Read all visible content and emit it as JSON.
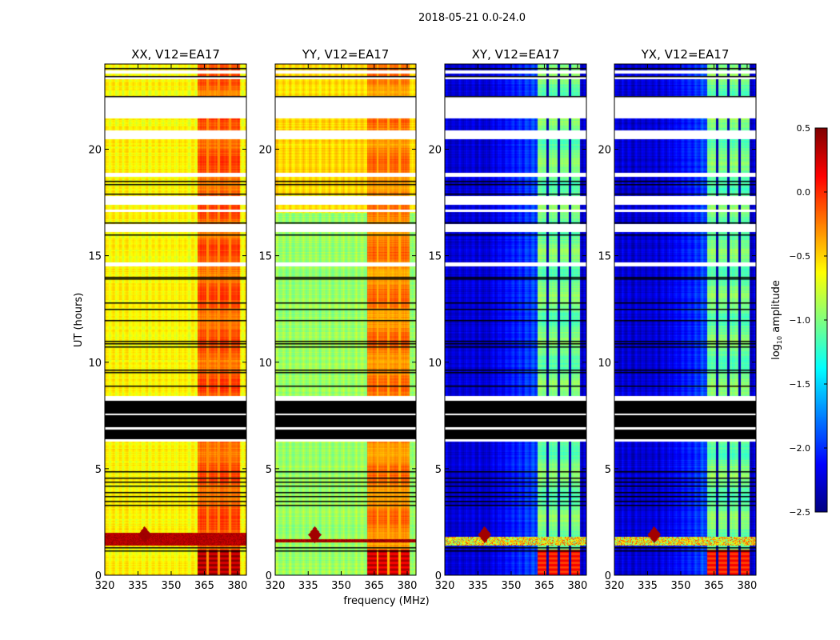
{
  "chart_data": {
    "type": "heatmap",
    "suptitle": "2018-05-21 0.0-24.0",
    "xlabel": "frequency (MHz)",
    "ylabel": "UT (hours)",
    "xlim": [
      320,
      384
    ],
    "ylim": [
      0,
      24
    ],
    "xticks": [
      320,
      335,
      350,
      365,
      380
    ],
    "yticks": [
      0,
      5,
      10,
      15,
      20
    ],
    "colormap": "jet",
    "colorbar": {
      "label_main": "log",
      "label_sub": "10",
      "label_rest": " amplitude",
      "range": [
        -2.5,
        0.5
      ],
      "ticks": [
        0.5,
        0.0,
        -0.5,
        -1.0,
        -1.5,
        -2.0,
        -2.5
      ],
      "tick_labels": [
        "0.5",
        "0.0",
        "−0.5",
        "−1.0",
        "−1.5",
        "−2.0",
        "−2.5"
      ]
    },
    "panels": [
      {
        "title": "XX, V12=EA17",
        "base": -0.62,
        "band": -0.15,
        "low_band": 0.35,
        "rfi_level": 0.35,
        "rfi_hours": [
          1.4,
          2.0
        ],
        "upper_shift": 0.0
      },
      {
        "title": "YY, V12=EA17",
        "base": -0.92,
        "band": -0.25,
        "low_band": 0.25,
        "rfi_level": 0.4,
        "rfi_hours": [
          1.55,
          1.7
        ],
        "upper_shift": 0.4
      },
      {
        "title": "XY, V12=EA17",
        "base": -2.25,
        "band": -1.05,
        "low_band": 0.05,
        "rfi_level": -0.6,
        "rfi_hours": [
          1.4,
          1.8
        ],
        "upper_shift": 0.0
      },
      {
        "title": "YX, V12=EA17",
        "base": -2.25,
        "band": -1.05,
        "low_band": 0.05,
        "rfi_level": -0.6,
        "rfi_hours": [
          1.4,
          1.8
        ],
        "upper_shift": 0.0
      }
    ],
    "band_subchannels_mhz": [
      [
        362,
        366
      ],
      [
        367,
        371
      ],
      [
        372,
        376
      ],
      [
        377,
        381
      ]
    ],
    "rfi_spike_mhz": 338,
    "flagged_white_hours": [
      [
        23.55,
        23.7
      ],
      [
        23.28,
        23.4
      ],
      [
        21.45,
        22.5
      ],
      [
        20.47,
        20.9
      ],
      [
        18.7,
        18.9
      ],
      [
        17.4,
        17.8
      ],
      [
        17.05,
        17.15
      ],
      [
        16.1,
        16.5
      ],
      [
        14.5,
        14.7
      ],
      [
        8.2,
        8.4
      ],
      [
        7.5,
        7.6
      ],
      [
        6.85,
        6.95
      ],
      [
        6.27,
        6.4
      ]
    ],
    "flagged_black_hours": [
      [
        6.4,
        8.2
      ]
    ],
    "black_lines_hours": [
      23.8,
      23.45,
      22.5,
      18.5,
      18.35,
      17.9,
      16.55,
      16.0,
      14.0,
      13.93,
      12.8,
      12.5,
      12.0,
      11.0,
      10.9,
      10.75,
      9.65,
      9.55,
      8.9,
      4.9,
      4.6,
      4.4,
      4.2,
      3.9,
      3.7,
      3.5,
      3.3,
      1.3,
      1.15
    ]
  }
}
